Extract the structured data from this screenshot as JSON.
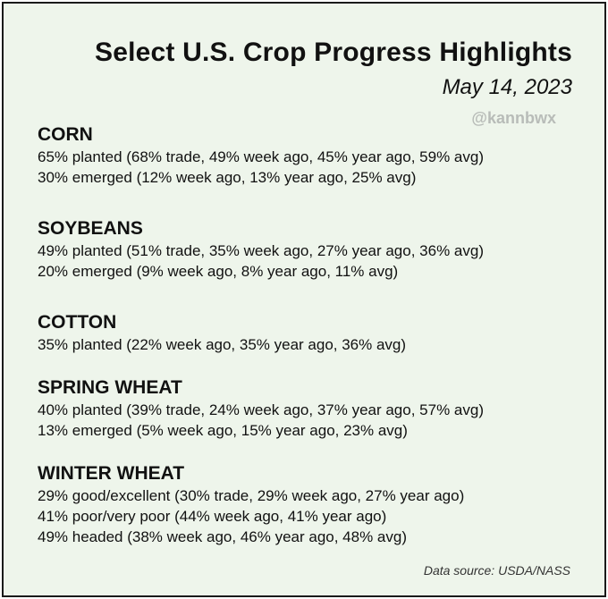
{
  "header": {
    "title": "Select U.S. Crop Progress Highlights",
    "date": "May 14, 2023",
    "handle": "@kannbwx"
  },
  "sections": [
    {
      "heading": "CORN",
      "lines": [
        "65% planted (68% trade, 49% week ago, 45% year ago, 59% avg)",
        "30% emerged (12% week ago, 13% year ago, 25% avg)"
      ]
    },
    {
      "heading": "SOYBEANS",
      "lines": [
        "49% planted (51% trade, 35% week ago, 27% year ago, 36% avg)",
        "20% emerged (9% week ago, 8% year ago, 11% avg)"
      ]
    },
    {
      "heading": "COTTON",
      "lines": [
        "35% planted (22% week ago, 35% year ago, 36% avg)"
      ]
    },
    {
      "heading": "SPRING WHEAT",
      "lines": [
        "40% planted (39% trade, 24% week ago, 37% year ago, 57% avg)",
        "13% emerged (5% week ago, 15% year ago, 23% avg)"
      ]
    },
    {
      "heading": "WINTER WHEAT",
      "lines": [
        "29% good/excellent (30% trade, 29% week ago, 27% year ago)",
        "41% poor/very poor (44% week ago, 41% year ago)",
        "49% headed (38% week ago, 46% year ago, 48% avg)"
      ]
    }
  ],
  "footer": {
    "source": "Data source: USDA/NASS"
  },
  "colors": {
    "background": "#eef5eb",
    "border": "#1a1a1a",
    "handle": "#b8bcb8"
  }
}
